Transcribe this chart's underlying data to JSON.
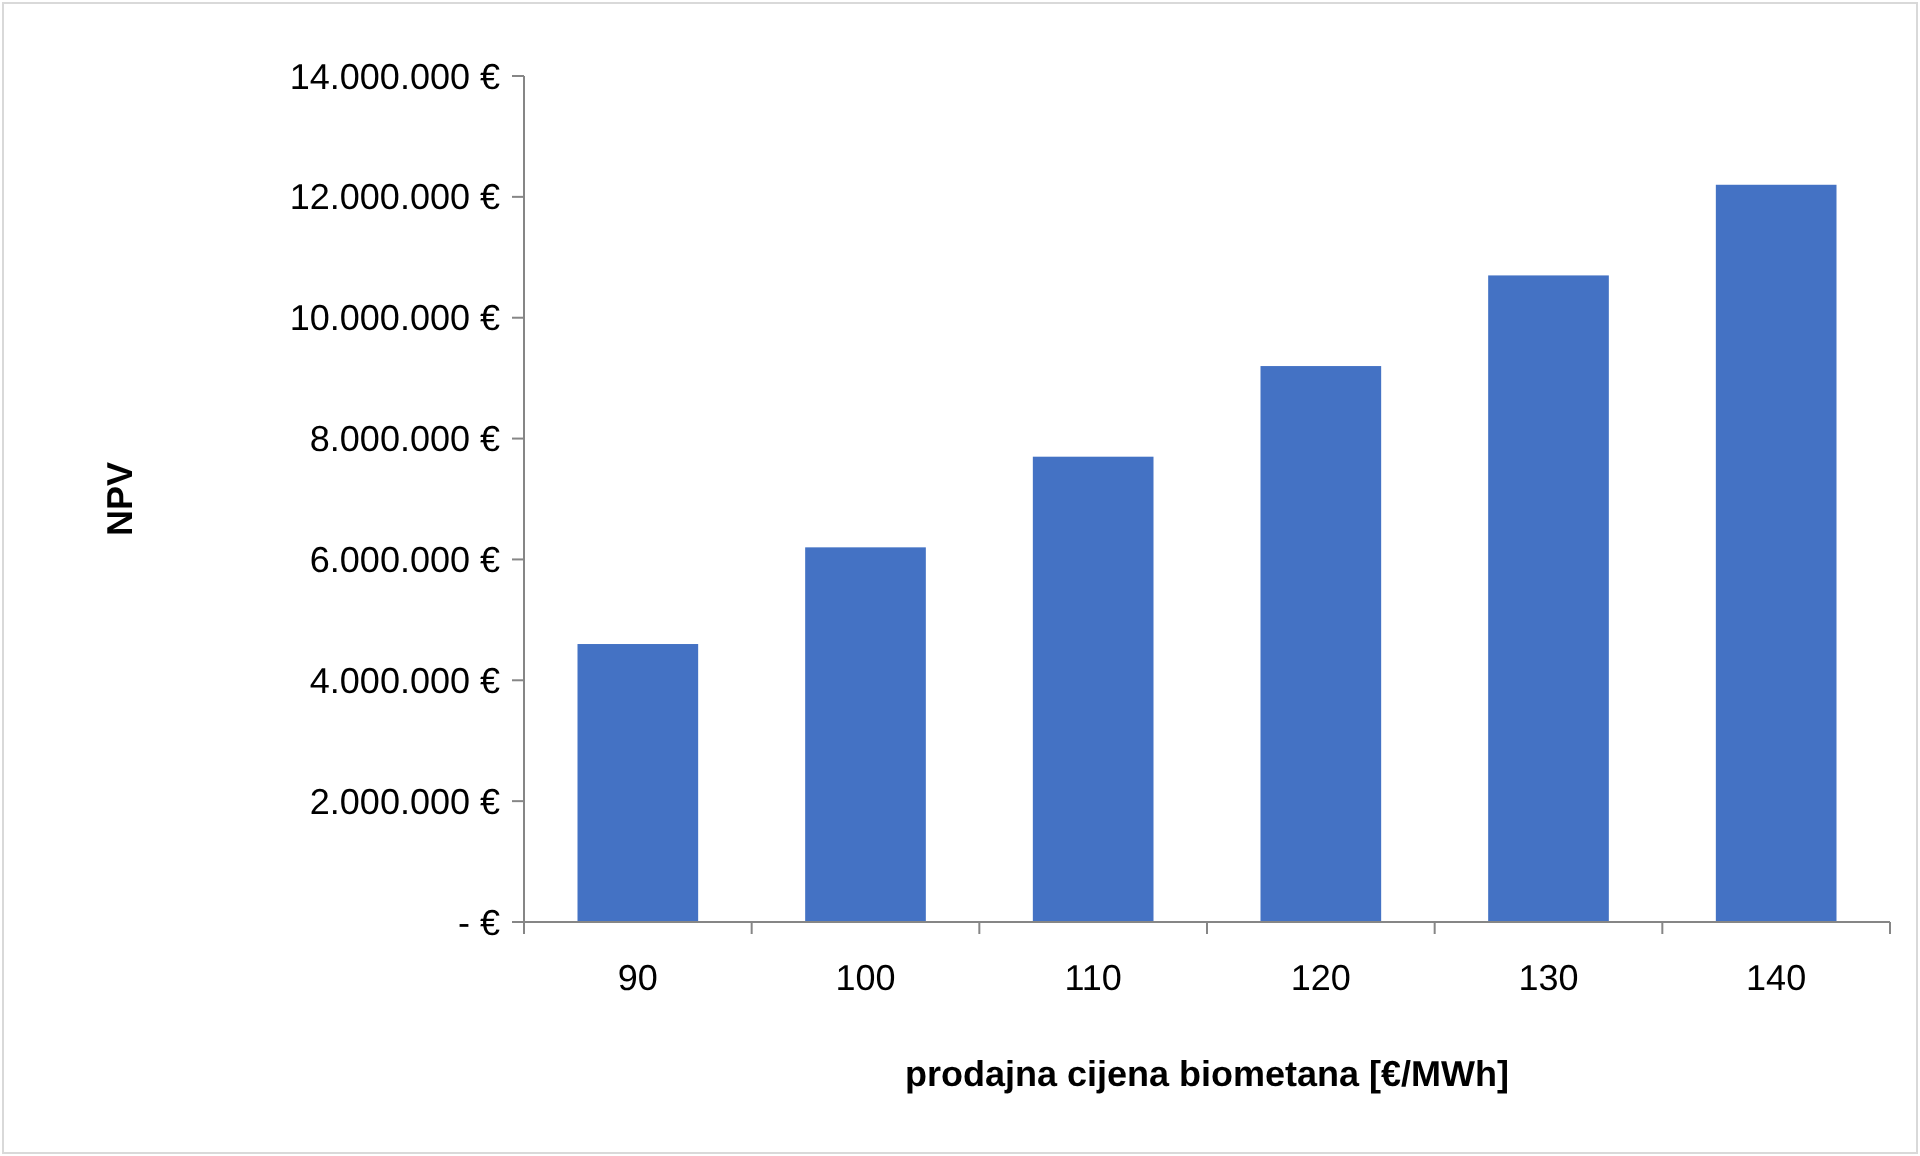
{
  "chart_data": {
    "type": "bar",
    "xlabel": "prodajna cijena biometana [€/MWh]",
    "ylabel": "NPV",
    "categories": [
      "90",
      "100",
      "110",
      "120",
      "130",
      "140"
    ],
    "values": [
      4600000,
      6200000,
      7700000,
      9200000,
      10700000,
      12200000
    ],
    "color": "#4472c4",
    "ylim": [
      0,
      14000000
    ],
    "yticks": [
      {
        "value": 0,
        "label": "- €"
      },
      {
        "value": 2000000,
        "label": "2.000.000 €"
      },
      {
        "value": 4000000,
        "label": "4.000.000 €"
      },
      {
        "value": 6000000,
        "label": "6.000.000 €"
      },
      {
        "value": 8000000,
        "label": "8.000.000 €"
      },
      {
        "value": 10000000,
        "label": "10.000.000 €"
      },
      {
        "value": 12000000,
        "label": "12.000.000 €"
      },
      {
        "value": 14000000,
        "label": "14.000.000 €"
      }
    ],
    "grid": false
  }
}
